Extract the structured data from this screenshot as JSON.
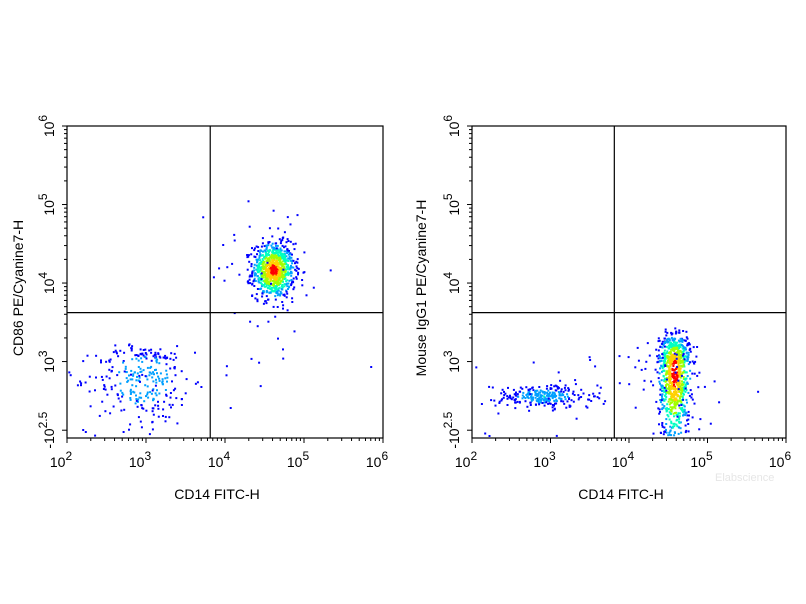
{
  "chart_data": [
    {
      "type": "scatter",
      "subtype": "flow-cytometry-density-dot-plot",
      "xlabel": "CD14 FITC-H",
      "ylabel": "CD86 PE/Cyanine7-H",
      "x_scale": "biexponential",
      "y_scale": "biexponential",
      "xlim": [
        100,
        1000000
      ],
      "x_ticks": [
        {
          "value": 100,
          "base": "10",
          "exp": "2"
        },
        {
          "value": 1000,
          "base": "10",
          "exp": "3"
        },
        {
          "value": 10000,
          "base": "10",
          "exp": "4"
        },
        {
          "value": 100000,
          "base": "10",
          "exp": "5"
        },
        {
          "value": 1000000,
          "base": "10",
          "exp": "6"
        }
      ],
      "y_ticks": [
        {
          "value": -316,
          "base": "-10",
          "exp": "2.5"
        },
        {
          "value": 1000,
          "base": "10",
          "exp": "3"
        },
        {
          "value": 10000,
          "base": "10",
          "exp": "4"
        },
        {
          "value": 100000,
          "base": "10",
          "exp": "5"
        },
        {
          "value": 1000000,
          "base": "10",
          "exp": "6"
        }
      ],
      "quadrant_gate": {
        "x": 6500,
        "y": 4200
      },
      "grid": false,
      "populations": [
        {
          "x_center": 40000,
          "y_center": 15000,
          "x_spread_decades": 0.13,
          "y_spread_decades": 0.17,
          "relative_density": "high"
        },
        {
          "x_center": 900,
          "y_center": 700,
          "x_spread_decades": 0.3,
          "y_spread_decades": 0.3,
          "relative_density": "low"
        }
      ],
      "colormap": [
        "#0000ff",
        "#00a0ff",
        "#00ffc0",
        "#a0ff00",
        "#ffd000",
        "#ff0000"
      ]
    },
    {
      "type": "scatter",
      "subtype": "flow-cytometry-density-dot-plot",
      "xlabel": "CD14 FITC-H",
      "ylabel": "Mouse IgG1 PE/Cyanine7-H",
      "x_scale": "biexponential",
      "y_scale": "biexponential",
      "xlim": [
        100,
        1000000
      ],
      "x_ticks": [
        {
          "value": 100,
          "base": "10",
          "exp": "2"
        },
        {
          "value": 1000,
          "base": "10",
          "exp": "3"
        },
        {
          "value": 10000,
          "base": "10",
          "exp": "4"
        },
        {
          "value": 100000,
          "base": "10",
          "exp": "5"
        },
        {
          "value": 1000000,
          "base": "10",
          "exp": "6"
        }
      ],
      "y_ticks": [
        {
          "value": -316,
          "base": "-10",
          "exp": "2.5"
        },
        {
          "value": 1000,
          "base": "10",
          "exp": "3"
        },
        {
          "value": 10000,
          "base": "10",
          "exp": "4"
        },
        {
          "value": 100000,
          "base": "10",
          "exp": "5"
        },
        {
          "value": 1000000,
          "base": "10",
          "exp": "6"
        }
      ],
      "quadrant_gate": {
        "x": 6500,
        "y": 4200
      },
      "grid": false,
      "populations": [
        {
          "x_center": 37000,
          "y_center": 800,
          "x_spread_decades": 0.1,
          "y_spread_decades": 0.38,
          "relative_density": "high"
        },
        {
          "x_center": 800,
          "y_center": 350,
          "x_spread_decades": 0.3,
          "y_spread_decades": 0.14,
          "relative_density": "low"
        }
      ],
      "colormap": [
        "#0000ff",
        "#00a0ff",
        "#00ffc0",
        "#a0ff00",
        "#ffd000",
        "#ff0000"
      ]
    }
  ],
  "watermark": "Elabscience"
}
